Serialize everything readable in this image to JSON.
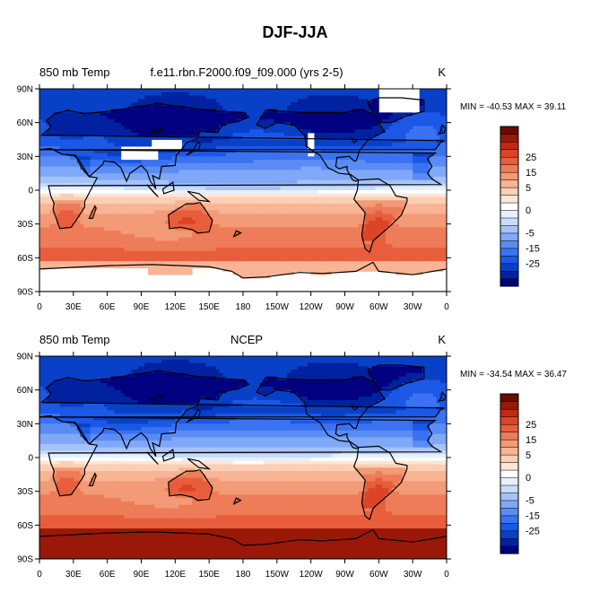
{
  "figure": {
    "title": "DJF-JJA"
  },
  "colors": {
    "levels": [
      "#000080",
      "#0022a0",
      "#0840c8",
      "#1c58e6",
      "#3a72f2",
      "#5a8cf4",
      "#80a8f8",
      "#a6c2fa",
      "#c8dcfc",
      "#e6f0fe",
      "#ffffff",
      "#fde6d6",
      "#fbcfb4",
      "#f8b494",
      "#f39a76",
      "#ee7c58",
      "#e85e3c",
      "#dc4426",
      "#c02a14",
      "#9a1808",
      "#6a0c00"
    ],
    "land_outline": "#000000",
    "missing": "#ffffff"
  },
  "chart_data": [
    {
      "type": "heatmap",
      "variable": "850 mb Temp",
      "dataset": "f.e11.rbn.F2000.f09_f09.000 (yrs 2-5)",
      "units": "K",
      "min": -40.53,
      "max": 39.11,
      "stats_text": "MIN = -40.53 MAX =  39.11",
      "x_ticks": [
        "0",
        "30E",
        "60E",
        "90E",
        "120E",
        "150E",
        "180",
        "150W",
        "120W",
        "90W",
        "60W",
        "30W",
        "0"
      ],
      "y_ticks": [
        "90N",
        "60N",
        "30N",
        "0",
        "30S",
        "60S",
        "90S"
      ],
      "x_range": [
        0,
        360
      ],
      "y_range": [
        -90,
        90
      ],
      "colorbar_labels": [
        "25",
        "15",
        "5",
        "0",
        "-5",
        "-15",
        "-25"
      ],
      "colorbar_levels": [
        -35,
        -30,
        -25,
        -20,
        -15,
        -10,
        -5,
        -2,
        -1,
        0,
        1,
        2,
        5,
        10,
        15,
        20,
        25,
        30,
        35
      ],
      "has_missing_regions": true
    },
    {
      "type": "heatmap",
      "variable": "850 mb Temp",
      "dataset": "NCEP",
      "units": "K",
      "min": -34.54,
      "max": 36.47,
      "stats_text": "MIN = -34.54 MAX =  36.47",
      "x_ticks": [
        "0",
        "30E",
        "60E",
        "90E",
        "120E",
        "150E",
        "180",
        "150W",
        "120W",
        "90W",
        "60W",
        "30W",
        "0"
      ],
      "y_ticks": [
        "90N",
        "60N",
        "30N",
        "0",
        "30S",
        "60S",
        "90S"
      ],
      "x_range": [
        0,
        360
      ],
      "y_range": [
        -90,
        90
      ],
      "colorbar_labels": [
        "25",
        "15",
        "5",
        "0",
        "-5",
        "-15",
        "-25"
      ],
      "colorbar_levels": [
        -35,
        -30,
        -25,
        -20,
        -15,
        -10,
        -5,
        -2,
        -1,
        0,
        1,
        2,
        5,
        10,
        15,
        20,
        25,
        30,
        35
      ],
      "has_missing_regions": false
    }
  ]
}
